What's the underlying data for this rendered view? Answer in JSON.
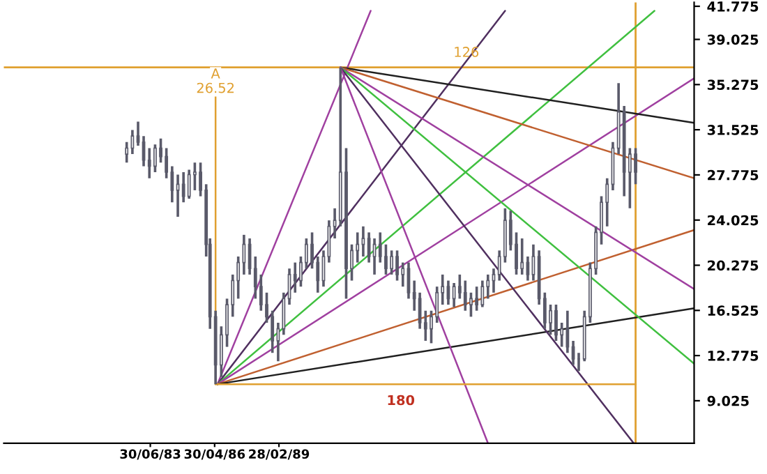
{
  "chart_data": {
    "type": "candlestick",
    "color": "#5a5a6a",
    "x": [
      "1982-06",
      "1982-09",
      "1982-12",
      "1983-03",
      "1983-06",
      "1983-09",
      "1983-12",
      "1984-03",
      "1984-06",
      "1984-09",
      "1984-12",
      "1985-03",
      "1985-06",
      "1985-09",
      "1985-12",
      "1986-02",
      "1986-05",
      "1986-08",
      "1986-11",
      "1987-02",
      "1987-05",
      "1987-08",
      "1987-11",
      "1988-02",
      "1988-05",
      "1988-08",
      "1988-11",
      "1989-02",
      "1989-05",
      "1989-08",
      "1989-11",
      "1990-02",
      "1990-05",
      "1990-08",
      "1990-11",
      "1991-02",
      "1991-05",
      "1991-08",
      "1991-11",
      "1992-02",
      "1992-05",
      "1992-08",
      "1992-11",
      "1993-02",
      "1993-05",
      "1993-08",
      "1993-11",
      "1994-02",
      "1994-05",
      "1994-08",
      "1994-11",
      "1995-02",
      "1995-05",
      "1995-08",
      "1995-11",
      "1996-02",
      "1996-05",
      "1996-08",
      "1996-11",
      "1997-02",
      "1997-05",
      "1997-08",
      "1997-11",
      "1998-02",
      "1998-05",
      "1998-08",
      "1998-11",
      "1999-02",
      "1999-05",
      "1999-08",
      "1999-11",
      "2000-02",
      "2000-05",
      "2000-08",
      "2000-11",
      "2001-02",
      "2001-05",
      "2001-08",
      "2001-11",
      "2002-02",
      "2002-05",
      "2002-08",
      "2002-11",
      "2003-02",
      "2003-05",
      "2003-08",
      "2003-11",
      "2004-02",
      "2004-05",
      "2004-08",
      "2004-11"
    ],
    "ohlc": [
      [
        29.5,
        30.5,
        28.8,
        30
      ],
      [
        30,
        31.5,
        29.5,
        31
      ],
      [
        31,
        32.2,
        30.2,
        30.5
      ],
      [
        30.5,
        31,
        28.5,
        29
      ],
      [
        29,
        30,
        27.5,
        28.5
      ],
      [
        28.5,
        30.3,
        28,
        30
      ],
      [
        30,
        30.8,
        28.8,
        29.3
      ],
      [
        29.3,
        30,
        27.5,
        28
      ],
      [
        28,
        28.5,
        25.5,
        26.5
      ],
      [
        26.5,
        27.8,
        24.3,
        27
      ],
      [
        27,
        28,
        25.5,
        26
      ],
      [
        26,
        28.2,
        25.8,
        27.8
      ],
      [
        27.8,
        28.8,
        26.5,
        28
      ],
      [
        28,
        28.8,
        26,
        26.5
      ],
      [
        26.5,
        27,
        21,
        22
      ],
      [
        22,
        22.5,
        15,
        16
      ],
      [
        16,
        16.5,
        10.4,
        12
      ],
      [
        12,
        15.2,
        11,
        14.5
      ],
      [
        14.5,
        17.5,
        13.5,
        17
      ],
      [
        17,
        19.5,
        16,
        19
      ],
      [
        19,
        21,
        17.5,
        20.5
      ],
      [
        20.5,
        22.8,
        19.5,
        22
      ],
      [
        22,
        22.5,
        19.5,
        20
      ],
      [
        20,
        21,
        17.5,
        18.5
      ],
      [
        18.5,
        19.5,
        16.5,
        17
      ],
      [
        17,
        18,
        15.5,
        16
      ],
      [
        16,
        16.5,
        13,
        14
      ],
      [
        14,
        15.5,
        12.3,
        15
      ],
      [
        15,
        18,
        14.5,
        17.5
      ],
      [
        17.5,
        20,
        17,
        19.5
      ],
      [
        19.5,
        20.5,
        18,
        19
      ],
      [
        19,
        21,
        18.5,
        20.5
      ],
      [
        20.5,
        22.5,
        20,
        22
      ],
      [
        22,
        23,
        20,
        20.5
      ],
      [
        20.5,
        21,
        18,
        19
      ],
      [
        19,
        21.5,
        18.5,
        21
      ],
      [
        21,
        24,
        20.5,
        23.5
      ],
      [
        23.5,
        25,
        22.5,
        24
      ],
      [
        24,
        36.7,
        23.5,
        28
      ],
      [
        28,
        30,
        17.5,
        20
      ],
      [
        20,
        22,
        19,
        21.5
      ],
      [
        21.5,
        23,
        20.5,
        22
      ],
      [
        22,
        23.5,
        21,
        22.5
      ],
      [
        22.5,
        23,
        20.5,
        21
      ],
      [
        21,
        22.5,
        19.5,
        22
      ],
      [
        22,
        23,
        20.5,
        21
      ],
      [
        21,
        22,
        19.5,
        20
      ],
      [
        20,
        21.5,
        19.5,
        21
      ],
      [
        21,
        21.5,
        19,
        19.5
      ],
      [
        19.5,
        20.5,
        18.5,
        20
      ],
      [
        20,
        20.5,
        17.5,
        18
      ],
      [
        18,
        19,
        16.5,
        17.5
      ],
      [
        17.5,
        18,
        15,
        15.5
      ],
      [
        15.5,
        16.5,
        14,
        15
      ],
      [
        15,
        16.5,
        13.8,
        16
      ],
      [
        16,
        18.5,
        15.5,
        18
      ],
      [
        18,
        19.5,
        17,
        18.5
      ],
      [
        18.5,
        19,
        17,
        17.5
      ],
      [
        17.5,
        18.8,
        16.8,
        18.5
      ],
      [
        18.5,
        19.5,
        17.5,
        18
      ],
      [
        18,
        19,
        16.5,
        17
      ],
      [
        17,
        18,
        16,
        17.5
      ],
      [
        17.5,
        18.5,
        16.5,
        17
      ],
      [
        17,
        19,
        16.8,
        18.5
      ],
      [
        18.5,
        19.5,
        17.5,
        19
      ],
      [
        19,
        20,
        18,
        19.5
      ],
      [
        19.5,
        21.5,
        19,
        21
      ],
      [
        21,
        25,
        20.5,
        24
      ],
      [
        24,
        24.8,
        21.5,
        22
      ],
      [
        22,
        23,
        19.5,
        20
      ],
      [
        20,
        22.5,
        19.5,
        20.5
      ],
      [
        20.5,
        21,
        19,
        19.5
      ],
      [
        19.5,
        22,
        19,
        21
      ],
      [
        21,
        21.5,
        17,
        17.5
      ],
      [
        17.5,
        18,
        15,
        15.5
      ],
      [
        15.5,
        17,
        14.5,
        16.5
      ],
      [
        16.5,
        17,
        14,
        14.5
      ],
      [
        14.5,
        15.5,
        13.5,
        15
      ],
      [
        15,
        16.5,
        13,
        13.5
      ],
      [
        13.5,
        14,
        12,
        12.5
      ],
      [
        12.5,
        13,
        11.5,
        12.5
      ],
      [
        12.5,
        16.5,
        12.3,
        16
      ],
      [
        16,
        20.5,
        15.5,
        20
      ],
      [
        20,
        23.5,
        19.5,
        23
      ],
      [
        23,
        26,
        22,
        25.5
      ],
      [
        25.5,
        27.5,
        23.5,
        27
      ],
      [
        27,
        30.5,
        26.5,
        30
      ],
      [
        30,
        35.4,
        29.5,
        33
      ],
      [
        33,
        33.5,
        26,
        28
      ],
      [
        28,
        30,
        25,
        29.5
      ],
      [
        29.5,
        30,
        27,
        28
      ]
    ],
    "series": [
      {
        "type": "line",
        "color": "#a040a0",
        "x": [
          "1986-06",
          "1993-03"
        ],
        "values": [
          10.4,
          41.4
        ]
      },
      {
        "type": "line",
        "color": "#503060",
        "x": [
          "1986-06",
          "1999-02"
        ],
        "values": [
          10.4,
          41.4
        ]
      },
      {
        "type": "line",
        "color": "#40c040",
        "x": [
          "1986-06",
          "2005-09"
        ],
        "values": [
          10.4,
          41.4
        ]
      },
      {
        "type": "line",
        "color": "#a040a0",
        "x": [
          "1986-06",
          "2007-06"
        ],
        "values": [
          10.4,
          35.8
        ]
      },
      {
        "type": "line",
        "color": "#c06030",
        "x": [
          "1986-06",
          "2007-06"
        ],
        "values": [
          10.4,
          23.2
        ]
      },
      {
        "type": "line",
        "color": "#202020",
        "x": [
          "1986-06",
          "2007-06"
        ],
        "values": [
          10.4,
          16.7
        ]
      },
      {
        "type": "line",
        "color": "#202020",
        "x": [
          "1991-11",
          "2007-06"
        ],
        "values": [
          36.7,
          32.1
        ]
      },
      {
        "type": "line",
        "color": "#c06030",
        "x": [
          "1991-11",
          "2007-06"
        ],
        "values": [
          36.7,
          27.5
        ]
      },
      {
        "type": "line",
        "color": "#a040a0",
        "x": [
          "1991-11",
          "2007-06"
        ],
        "values": [
          36.7,
          18.3
        ]
      },
      {
        "type": "line",
        "color": "#40c040",
        "x": [
          "1991-11",
          "2007-06"
        ],
        "values": [
          36.7,
          12.1
        ]
      },
      {
        "type": "line",
        "color": "#503060",
        "x": [
          "1991-11",
          "2004-10"
        ],
        "values": [
          36.7,
          5.5
        ]
      },
      {
        "type": "line",
        "color": "#a040a0",
        "x": [
          "1991-11",
          "1998-05"
        ],
        "values": [
          36.7,
          5.5
        ]
      },
      {
        "type": "line",
        "color": "#e0a030",
        "x": [
          "1986-05",
          "1986-05"
        ],
        "values": [
          36.7,
          10.4
        ]
      },
      {
        "type": "line",
        "color": "#e0a030",
        "x": [
          "1986-05",
          "2004-11"
        ],
        "values": [
          10.4,
          10.4
        ]
      }
    ],
    "ref_lines": [
      {
        "axis": "y",
        "value": 36.7,
        "color": "#e0a030"
      },
      {
        "axis": "x",
        "value": "2004-11",
        "color": "#e0a030"
      }
    ],
    "annotations": [
      {
        "text": "A",
        "x": "1986-05",
        "y": 36.1
      },
      {
        "text": "26.52",
        "x": "1986-05",
        "y": 34.9
      },
      "126",
      "180"
    ],
    "xlim": [
      "1977-01",
      "2007-06"
    ],
    "xticks": [
      {
        "value": "1983-06-30",
        "label": "30/06/83"
      },
      {
        "value": "1986-04-30",
        "label": "30/04/86"
      },
      {
        "value": "1989-02-28",
        "label": "28/02/89"
      }
    ],
    "ylim": [
      5.5,
      42.1
    ],
    "yticks": [
      9.025,
      12.775,
      16.525,
      20.275,
      24.025,
      27.775,
      31.525,
      35.275,
      39.025,
      41.775
    ],
    "grid": false,
    "legend": false
  }
}
